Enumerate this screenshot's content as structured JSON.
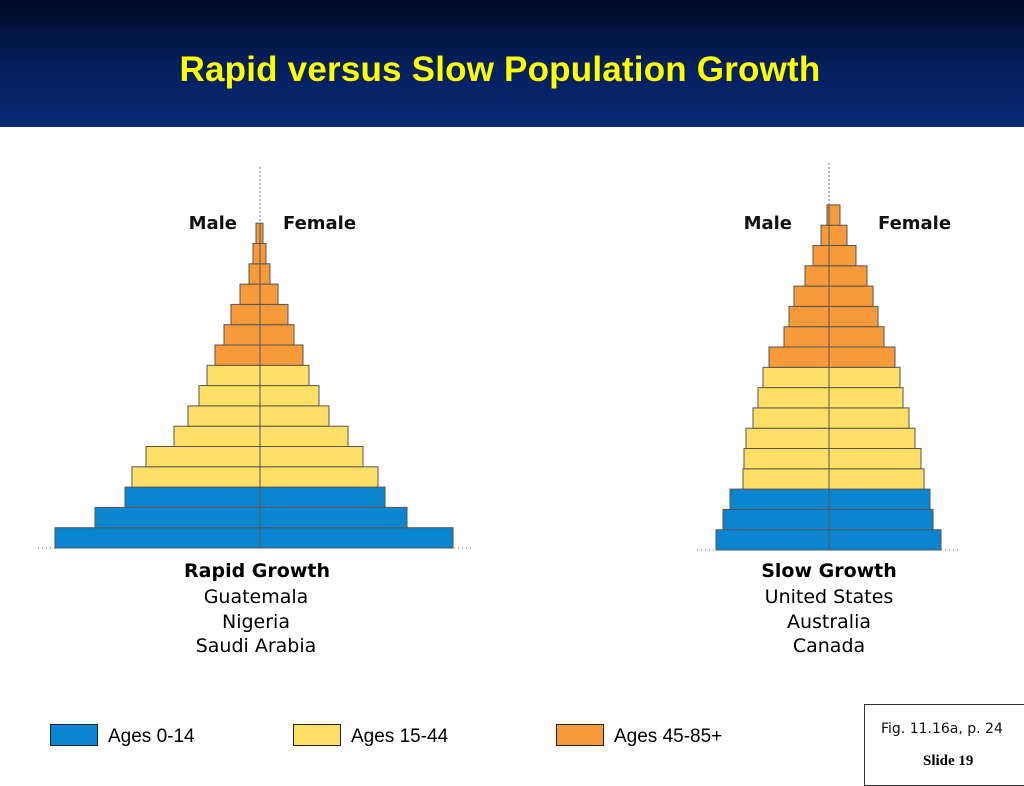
{
  "header": {
    "title": "Rapid versus Slow Population Growth"
  },
  "colors": {
    "age_0_14": "#0a85cf",
    "age_15_44": "#ffe066",
    "age_45_85": "#f8993a"
  },
  "legend": [
    {
      "label": "Ages 0-14",
      "color": "#0a85cf"
    },
    {
      "label": "Ages 15-44",
      "color": "#ffe066"
    },
    {
      "label": "Ages 45-85+",
      "color": "#f8993a"
    }
  ],
  "chart_data": [
    {
      "type": "bar",
      "title": "Rapid Growth",
      "countries": [
        "Guatemala",
        "Nigeria",
        "Saudi Arabia"
      ],
      "left_label": "Male",
      "right_label": "Female",
      "bars_bottom_to_top": [
        {
          "group": "0-14",
          "male": 205,
          "female": 193
        },
        {
          "group": "0-14",
          "male": 165,
          "female": 147
        },
        {
          "group": "0-14",
          "male": 135,
          "female": 125
        },
        {
          "group": "15-44",
          "male": 128,
          "female": 118
        },
        {
          "group": "15-44",
          "male": 114,
          "female": 103
        },
        {
          "group": "15-44",
          "male": 86,
          "female": 88
        },
        {
          "group": "15-44",
          "male": 72,
          "female": 69
        },
        {
          "group": "15-44",
          "male": 61,
          "female": 59
        },
        {
          "group": "15-44",
          "male": 53,
          "female": 49
        },
        {
          "group": "45-85+",
          "male": 45,
          "female": 43
        },
        {
          "group": "45-85+",
          "male": 36,
          "female": 34
        },
        {
          "group": "45-85+",
          "male": 29,
          "female": 28
        },
        {
          "group": "45-85+",
          "male": 20,
          "female": 18
        },
        {
          "group": "45-85+",
          "male": 11,
          "female": 10
        },
        {
          "group": "45-85+",
          "male": 7,
          "female": 6
        },
        {
          "group": "45-85+",
          "male": 4,
          "female": 3
        }
      ]
    },
    {
      "type": "bar",
      "title": "Slow Growth",
      "countries": [
        "United States",
        "Australia",
        "Canada"
      ],
      "left_label": "Male",
      "right_label": "Female",
      "bars_bottom_to_top": [
        {
          "group": "0-14",
          "male": 113,
          "female": 112
        },
        {
          "group": "0-14",
          "male": 106,
          "female": 104
        },
        {
          "group": "0-14",
          "male": 99,
          "female": 101
        },
        {
          "group": "15-44",
          "male": 86,
          "female": 95
        },
        {
          "group": "15-44",
          "male": 85,
          "female": 92
        },
        {
          "group": "15-44",
          "male": 83,
          "female": 86
        },
        {
          "group": "15-44",
          "male": 76,
          "female": 80
        },
        {
          "group": "15-44",
          "male": 71,
          "female": 74
        },
        {
          "group": "15-44",
          "male": 66,
          "female": 71
        },
        {
          "group": "45-85+",
          "male": 60,
          "female": 66
        },
        {
          "group": "45-85+",
          "male": 45,
          "female": 55
        },
        {
          "group": "45-85+",
          "male": 40,
          "female": 49
        },
        {
          "group": "45-85+",
          "male": 35,
          "female": 44
        },
        {
          "group": "45-85+",
          "male": 24,
          "female": 38
        },
        {
          "group": "45-85+",
          "male": 16,
          "female": 27
        },
        {
          "group": "45-85+",
          "male": 8,
          "female": 18
        },
        {
          "group": "45-85+",
          "male": 2,
          "female": 11
        }
      ]
    }
  ],
  "footer": {
    "fig_ref": "Fig. 11.16a, p. 24",
    "slide_label": "Slide 19"
  }
}
